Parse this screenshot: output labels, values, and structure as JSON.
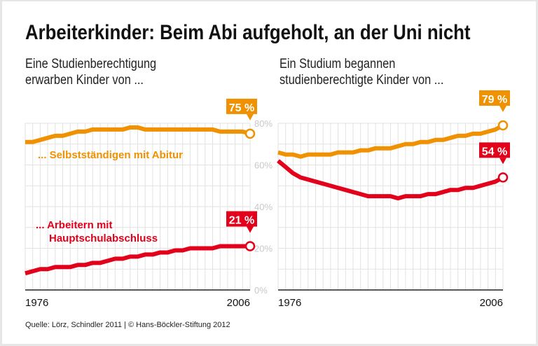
{
  "title": "Arbeiterkinder: Beim Abi aufgeholt, an der Uni nicht",
  "source": "Quelle: Lörz, Schindler 2011 | © Hans-Böckler-Stiftung 2012",
  "colors": {
    "orange": "#ef9100",
    "red": "#e2001a",
    "grid": "#e2e2e2",
    "axis_label": "#c8c8c8"
  },
  "chart_data": [
    {
      "type": "line",
      "subtitle_lines": [
        "Eine Studienberechtigung",
        "erwarben Kinder von ..."
      ],
      "x_ticks": [
        "1976",
        "2006"
      ],
      "xlim": [
        1976,
        2006
      ],
      "ylim": [
        0,
        80
      ],
      "grid": true,
      "y_ticks": [
        "0%",
        "20%",
        "40%",
        "60%",
        "80%"
      ],
      "series": [
        {
          "name_lines": [
            "... Selbstständigen mit Abitur"
          ],
          "color": "orange",
          "end_label": "75 %",
          "values": [
            71,
            71,
            72,
            73,
            74,
            74,
            75,
            76,
            76,
            77,
            77,
            77,
            77,
            77,
            78,
            78,
            77,
            77,
            77,
            77,
            77,
            77,
            77,
            77,
            77,
            77,
            76,
            76,
            76,
            76,
            75
          ]
        },
        {
          "name_lines": [
            "... Arbeitern mit",
            "Hauptschulabschluss"
          ],
          "color": "red",
          "end_label": "21 %",
          "values": [
            8,
            9,
            10,
            10,
            11,
            11,
            11,
            12,
            12,
            13,
            13,
            14,
            15,
            15,
            16,
            16,
            17,
            17,
            18,
            18,
            19,
            19,
            20,
            20,
            20,
            20,
            21,
            21,
            21,
            21,
            21
          ]
        }
      ]
    },
    {
      "type": "line",
      "subtitle_lines": [
        "Ein Studium begannen",
        "studienberechtigte Kinder von ..."
      ],
      "x_ticks": [
        "1976",
        "2006"
      ],
      "xlim": [
        1976,
        2006
      ],
      "ylim": [
        0,
        80
      ],
      "grid": true,
      "series": [
        {
          "color": "orange",
          "end_label": "79 %",
          "values": [
            66,
            65,
            65,
            64,
            65,
            65,
            65,
            65,
            66,
            66,
            66,
            67,
            67,
            68,
            68,
            68,
            69,
            70,
            70,
            71,
            71,
            72,
            72,
            73,
            74,
            74,
            75,
            75,
            76,
            77,
            79
          ]
        },
        {
          "color": "red",
          "end_label": "54 %",
          "values": [
            62,
            59,
            56,
            54,
            53,
            52,
            51,
            50,
            49,
            48,
            47,
            46,
            45,
            45,
            45,
            45,
            44,
            45,
            45,
            45,
            46,
            46,
            47,
            48,
            48,
            49,
            49,
            50,
            51,
            52,
            54
          ]
        }
      ]
    }
  ]
}
